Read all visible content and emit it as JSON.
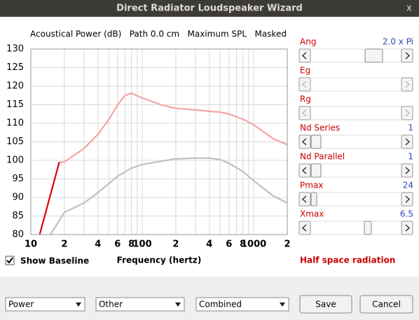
{
  "window": {
    "title": "Direct Radiator Loudspeaker Wizard",
    "close": "x"
  },
  "chart_data": {
    "type": "line",
    "title": "Acoustical Power (dB)   Path 0.0 cm   Maximum SPL   Masked",
    "x_label": "Frequency (hertz)",
    "xlog": true,
    "grid": true,
    "xlim": [
      10,
      2000
    ],
    "ylim": [
      80,
      130
    ],
    "xticks": [
      10,
      {
        "value": 20,
        "label": "2"
      },
      {
        "value": 40,
        "label": "4"
      },
      {
        "value": 60,
        "label": "6"
      },
      {
        "value": 80,
        "label": "8"
      },
      100,
      {
        "value": 200,
        "label": "2"
      },
      {
        "value": 400,
        "label": "4"
      },
      {
        "value": 600,
        "label": "6"
      },
      {
        "value": 800,
        "label": "8"
      },
      1000,
      {
        "value": 2000,
        "label": "2"
      }
    ],
    "xgrid_minor": [
      30,
      50,
      70,
      90,
      300,
      500,
      700,
      900
    ],
    "yticks": [
      80,
      85,
      90,
      95,
      100,
      105,
      110,
      115,
      120,
      125,
      130
    ],
    "series": [
      {
        "color": "#f4a5a5",
        "x": [
          17.8,
          20,
          30,
          40,
          50,
          60,
          70,
          80,
          100,
          150,
          200,
          300,
          400,
          500,
          600,
          800,
          1000,
          1500,
          2000
        ],
        "values": [
          99.4,
          99.6,
          103.2,
          107,
          111,
          114.9,
          117.5,
          118.1,
          116.8,
          114.9,
          114,
          113.6,
          113.2,
          113,
          112.5,
          111.1,
          109.6,
          105.8,
          104.2
        ]
      },
      {
        "color": "#c0c0c0",
        "x": [
          15,
          20,
          30,
          40,
          60,
          80,
          100,
          200,
          300,
          400,
          500,
          600,
          800,
          1000,
          1500,
          2000
        ],
        "values": [
          80,
          86,
          88.5,
          91.3,
          95.7,
          97.9,
          98.9,
          100.4,
          100.6,
          100.6,
          100.2,
          99.2,
          97,
          94.5,
          90.4,
          88.5
        ]
      },
      {
        "color": "#e00000",
        "x": [
          12,
          18
        ],
        "values": [
          80,
          99.5
        ]
      }
    ]
  },
  "show_baseline": {
    "label": "Show Baseline",
    "checked": true
  },
  "parameters": [
    {
      "label": "Ang",
      "value": "2.0 x Pi"
    },
    {
      "label": "Eg"
    },
    {
      "label": "Rg"
    },
    {
      "label": "Nd  Series",
      "value": "1"
    },
    {
      "label": "Nd  Parallel",
      "value": "1"
    },
    {
      "label": "Pmax",
      "value": "24"
    },
    {
      "label": "Xmax",
      "value": "6.5"
    }
  ],
  "radiation": "Half space radiation",
  "dropdowns": [
    "Power",
    "Other",
    "Combined"
  ],
  "buttons": [
    "Save",
    "Cancel"
  ]
}
